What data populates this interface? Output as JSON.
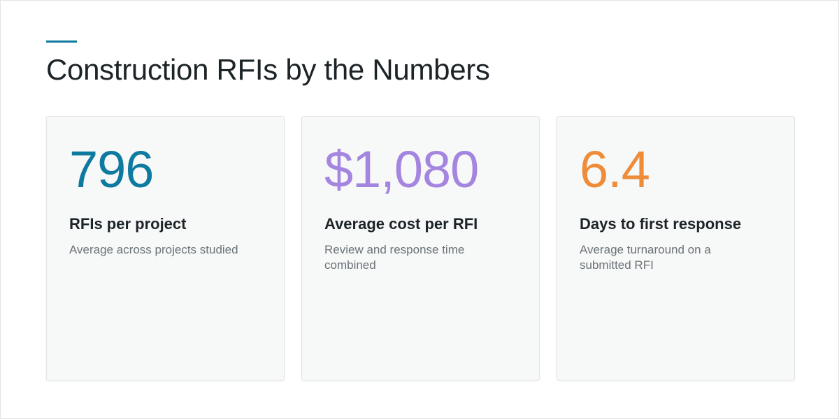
{
  "header": {
    "title": "Construction RFIs by the Numbers"
  },
  "colors": {
    "accent": "#0e7aa0",
    "stat_teal": "#0e7aa0",
    "stat_purple": "#a485e0",
    "stat_orange": "#ef8c39"
  },
  "stats": [
    {
      "value": "796",
      "label": "RFIs per project",
      "description": "Average across projects studied",
      "color": "#0e7aa0"
    },
    {
      "value": "$1,080",
      "label": "Average cost per RFI",
      "description": "Review and response time combined",
      "color": "#a485e0"
    },
    {
      "value": "6.4",
      "label": "Days to first response",
      "description": "Average turnaround on a submitted RFI",
      "color": "#ef8c39"
    }
  ]
}
